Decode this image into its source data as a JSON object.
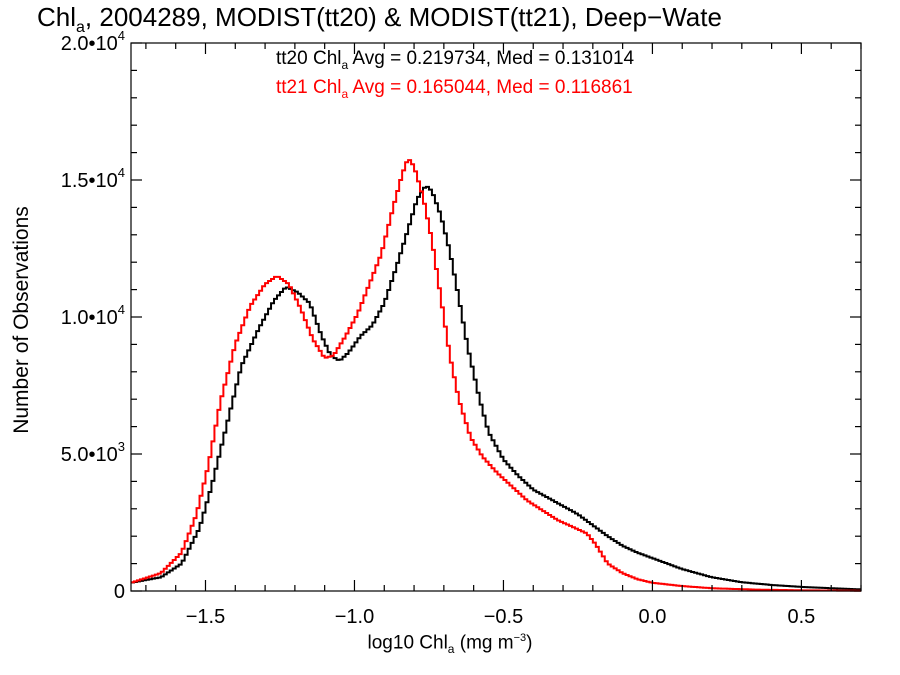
{
  "chart_data": {
    "type": "line",
    "title": {
      "prefix": "Chl",
      "sub": "a",
      "rest": ", 2004289, MODIST(tt20) & MODIST(tt21), Deep−Wate"
    },
    "xlabel": {
      "prefix": "log10 Chl",
      "sub": "a",
      "mid": " (mg m",
      "sup": "−3",
      "suffix": ")"
    },
    "ylabel": "Number of Observations",
    "xlim": [
      -1.75,
      0.7
    ],
    "ylim": [
      0,
      20000
    ],
    "x_ticks": [
      {
        "value": -1.5,
        "label": "−1.5"
      },
      {
        "value": -1.0,
        "label": "−1.0"
      },
      {
        "value": -0.5,
        "label": "−0.5"
      },
      {
        "value": 0.0,
        "label": "0.0"
      },
      {
        "value": 0.5,
        "label": "0.5"
      }
    ],
    "y_ticks": [
      {
        "value": 0,
        "base": "0",
        "exp": ""
      },
      {
        "value": 5000,
        "base": "5.0•10",
        "exp": "3"
      },
      {
        "value": 10000,
        "base": "1.0•10",
        "exp": "4"
      },
      {
        "value": 15000,
        "base": "1.5•10",
        "exp": "4"
      },
      {
        "value": 20000,
        "base": "2.0•10",
        "exp": "4"
      }
    ],
    "grid": false,
    "series": [
      {
        "name": "tt20",
        "color": "#000000",
        "step": 0.01,
        "stats": {
          "avg": "0.219734",
          "med": "0.131014"
        },
        "points": [
          [
            -1.75,
            300
          ],
          [
            -1.65,
            500
          ],
          [
            -1.58,
            1000
          ],
          [
            -1.52,
            2300
          ],
          [
            -1.48,
            3800
          ],
          [
            -1.43,
            6000
          ],
          [
            -1.38,
            8200
          ],
          [
            -1.32,
            9600
          ],
          [
            -1.27,
            10600
          ],
          [
            -1.23,
            11100
          ],
          [
            -1.19,
            10900
          ],
          [
            -1.15,
            10500
          ],
          [
            -1.11,
            9300
          ],
          [
            -1.08,
            8600
          ],
          [
            -1.05,
            8400
          ],
          [
            -1.02,
            8700
          ],
          [
            -0.98,
            9300
          ],
          [
            -0.94,
            9700
          ],
          [
            -0.9,
            10500
          ],
          [
            -0.86,
            11800
          ],
          [
            -0.82,
            13200
          ],
          [
            -0.79,
            14300
          ],
          [
            -0.76,
            14800
          ],
          [
            -0.74,
            14600
          ],
          [
            -0.71,
            13700
          ],
          [
            -0.68,
            12400
          ],
          [
            -0.65,
            10700
          ],
          [
            -0.62,
            8900
          ],
          [
            -0.58,
            7000
          ],
          [
            -0.55,
            5800
          ],
          [
            -0.5,
            4800
          ],
          [
            -0.45,
            4200
          ],
          [
            -0.4,
            3700
          ],
          [
            -0.35,
            3400
          ],
          [
            -0.3,
            3100
          ],
          [
            -0.25,
            2800
          ],
          [
            -0.2,
            2400
          ],
          [
            -0.15,
            2000
          ],
          [
            -0.1,
            1650
          ],
          [
            -0.05,
            1400
          ],
          [
            0.0,
            1200
          ],
          [
            0.05,
            1000
          ],
          [
            0.1,
            800
          ],
          [
            0.2,
            500
          ],
          [
            0.3,
            320
          ],
          [
            0.4,
            220
          ],
          [
            0.5,
            150
          ],
          [
            0.6,
            100
          ],
          [
            0.7,
            60
          ]
        ]
      },
      {
        "name": "tt21",
        "color": "#ff0000",
        "step": 0.01,
        "stats": {
          "avg": "0.165044",
          "med": "0.116861"
        },
        "points": [
          [
            -1.75,
            300
          ],
          [
            -1.65,
            650
          ],
          [
            -1.58,
            1400
          ],
          [
            -1.53,
            2800
          ],
          [
            -1.49,
            4600
          ],
          [
            -1.45,
            6900
          ],
          [
            -1.4,
            9000
          ],
          [
            -1.35,
            10400
          ],
          [
            -1.3,
            11200
          ],
          [
            -1.26,
            11500
          ],
          [
            -1.22,
            11200
          ],
          [
            -1.18,
            10300
          ],
          [
            -1.14,
            9200
          ],
          [
            -1.1,
            8500
          ],
          [
            -1.07,
            8600
          ],
          [
            -1.03,
            9300
          ],
          [
            -0.99,
            10100
          ],
          [
            -0.95,
            11200
          ],
          [
            -0.91,
            12300
          ],
          [
            -0.87,
            14000
          ],
          [
            -0.84,
            15200
          ],
          [
            -0.82,
            15800
          ],
          [
            -0.8,
            15500
          ],
          [
            -0.77,
            14400
          ],
          [
            -0.74,
            12800
          ],
          [
            -0.71,
            10700
          ],
          [
            -0.68,
            8600
          ],
          [
            -0.65,
            7000
          ],
          [
            -0.61,
            5600
          ],
          [
            -0.57,
            4900
          ],
          [
            -0.52,
            4300
          ],
          [
            -0.47,
            3800
          ],
          [
            -0.42,
            3300
          ],
          [
            -0.37,
            2950
          ],
          [
            -0.32,
            2600
          ],
          [
            -0.27,
            2350
          ],
          [
            -0.22,
            2100
          ],
          [
            -0.19,
            1700
          ],
          [
            -0.15,
            1000
          ],
          [
            -0.1,
            650
          ],
          [
            -0.05,
            430
          ],
          [
            0.0,
            300
          ],
          [
            0.1,
            180
          ],
          [
            0.2,
            100
          ],
          [
            0.35,
            50
          ],
          [
            0.5,
            25
          ],
          [
            0.7,
            10
          ]
        ]
      }
    ]
  },
  "annotations": [
    {
      "prefix": "tt20 Chl",
      "sub": "a",
      "text": " Avg = 0.219734, Med = 0.131014",
      "color": "#000000"
    },
    {
      "prefix": "tt21 Chl",
      "sub": "a",
      "text": " Avg = 0.165044, Med = 0.116861",
      "color": "#ff0000"
    }
  ]
}
